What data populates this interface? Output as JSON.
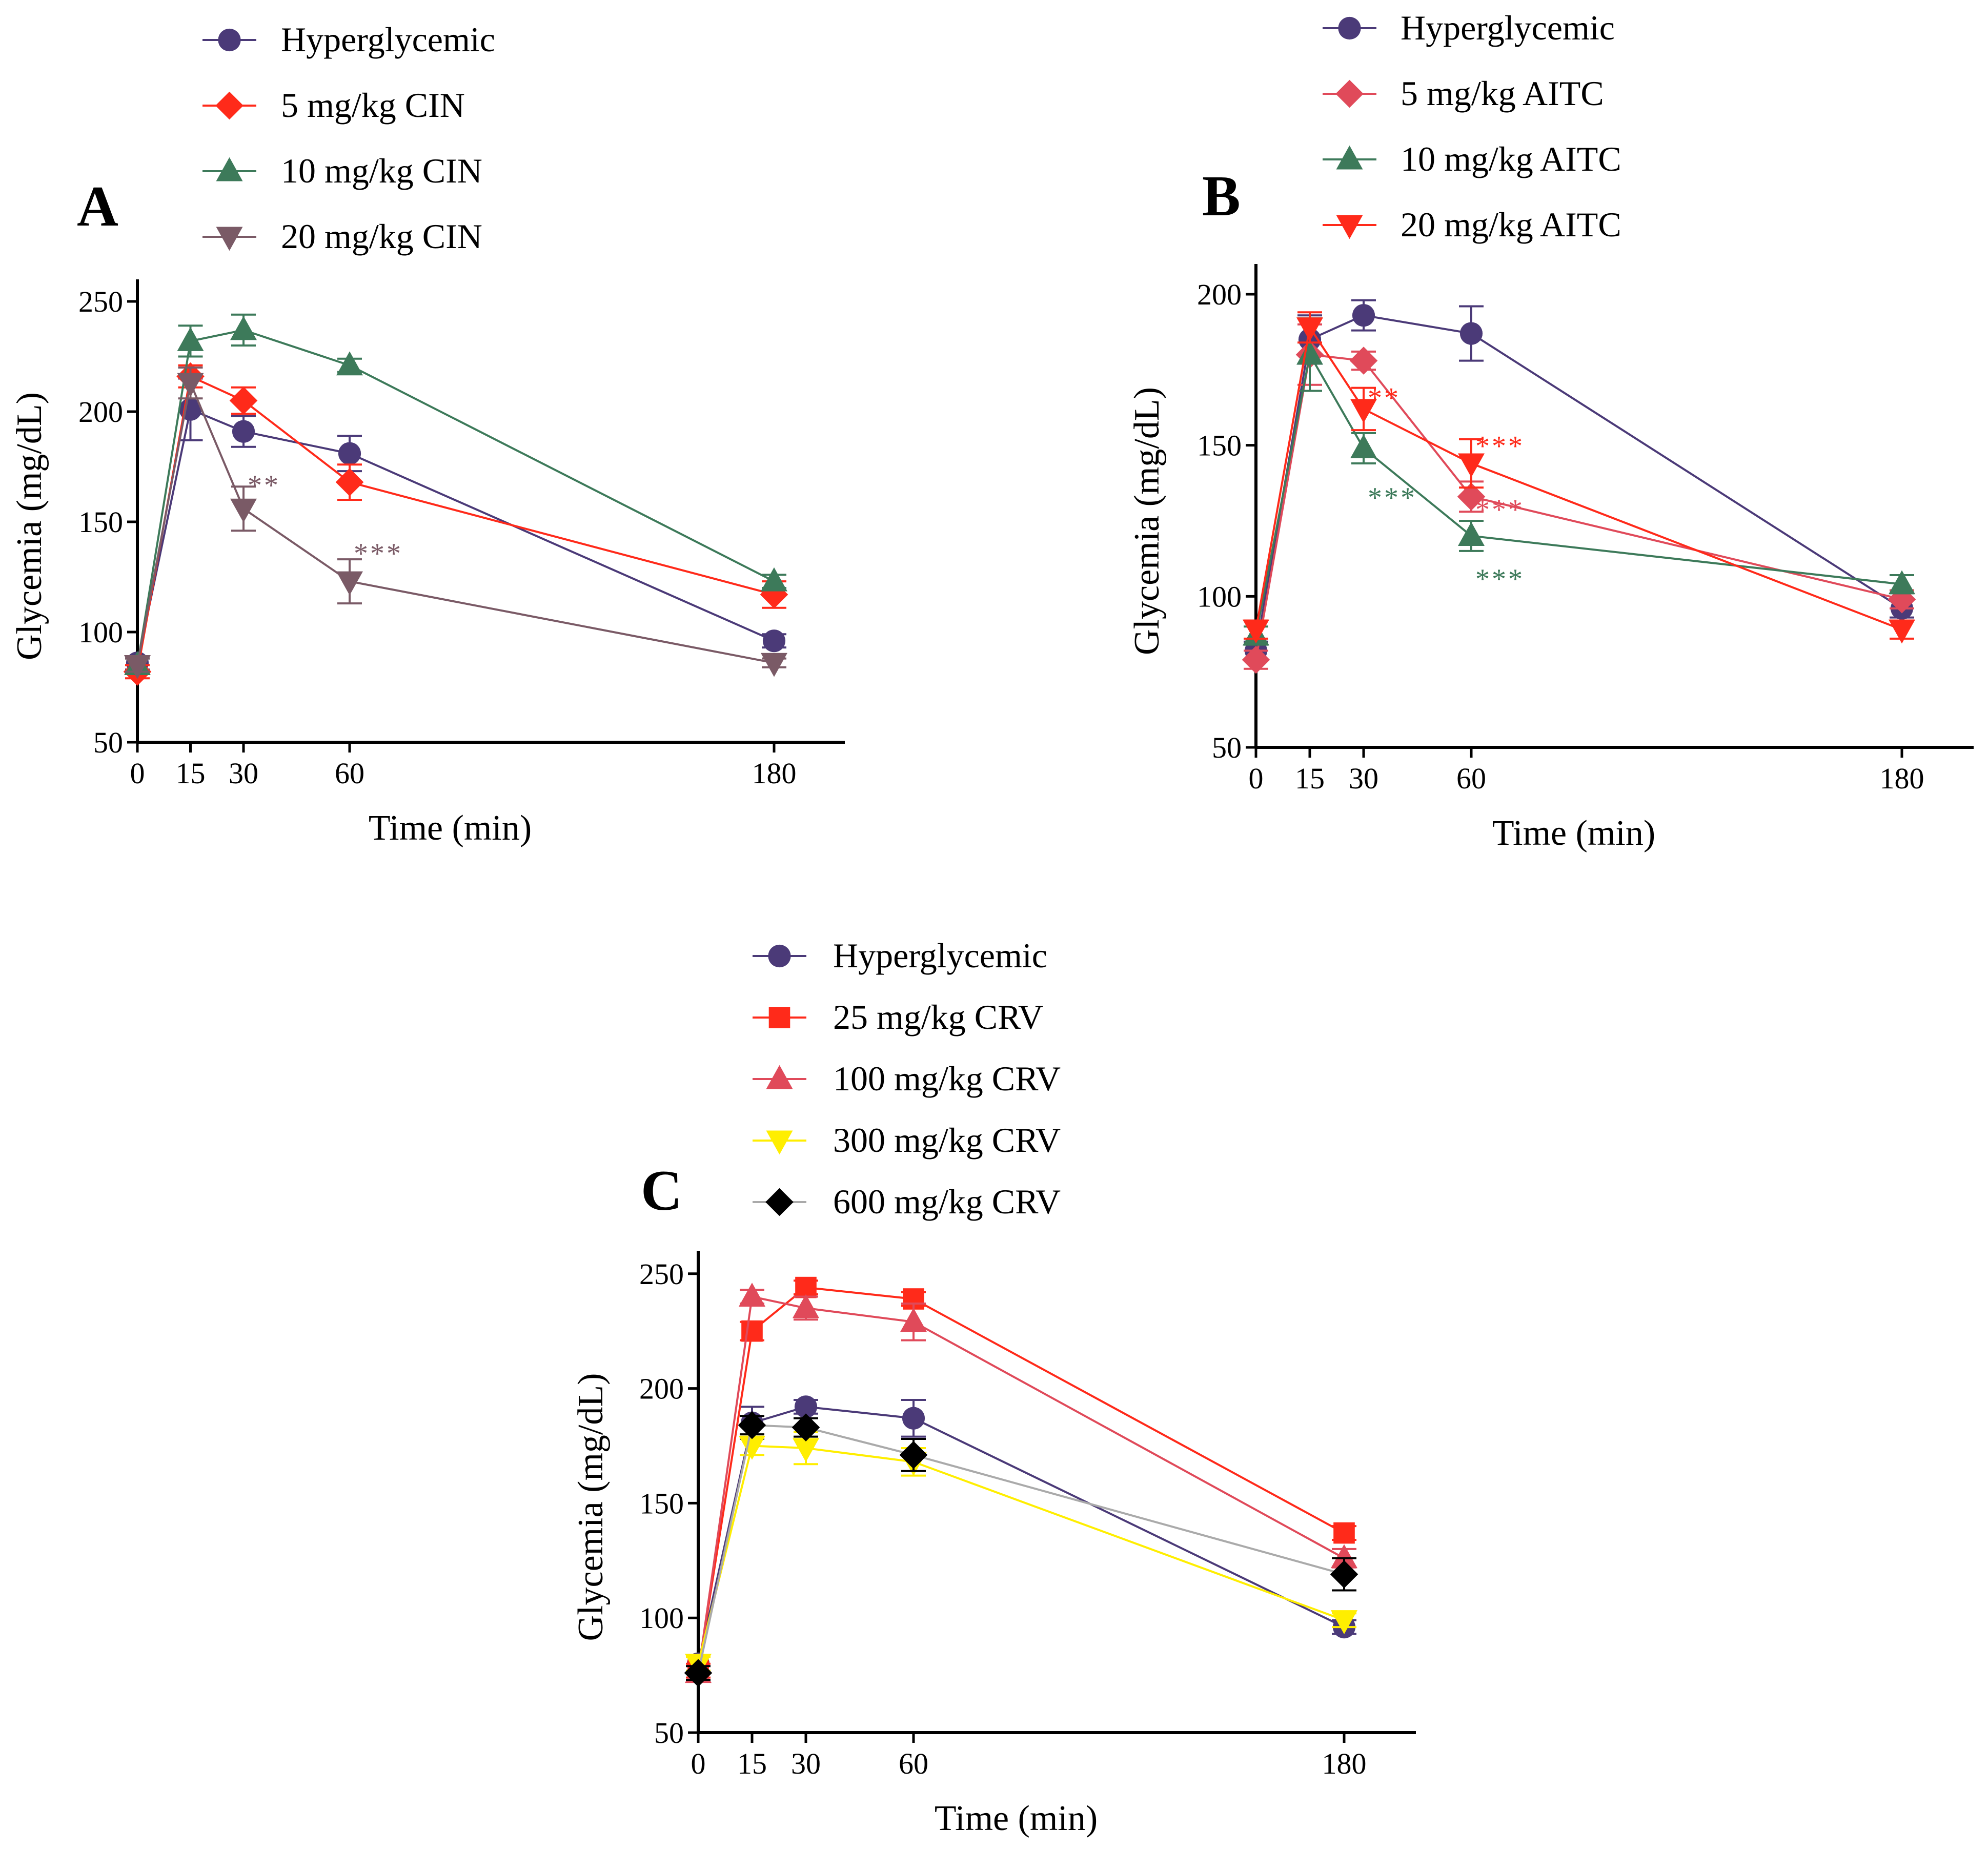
{
  "chart_data": [
    {
      "panel": "A",
      "type": "line",
      "title": "A",
      "xlabel": "Time (min)",
      "ylabel": "Glycemia (mg/dL)",
      "xticks": [
        0,
        15,
        30,
        60,
        180
      ],
      "xtick_labels": [
        "0",
        "15",
        "30",
        "60",
        "180"
      ],
      "yticks": [
        50,
        100,
        150,
        200,
        250
      ],
      "ytick_labels": [
        "50",
        "100",
        "150",
        "200",
        "250"
      ],
      "xlim": [
        0,
        200
      ],
      "ylim": [
        50,
        260
      ],
      "legend_position": "top",
      "series": [
        {
          "name": "Hyperglycemic",
          "color": "#4b3a78",
          "marker": "circle",
          "x": [
            0,
            15,
            30,
            60,
            180
          ],
          "values": [
            86,
            201,
            191,
            181,
            96
          ],
          "errors": [
            3,
            14,
            7,
            8,
            3
          ]
        },
        {
          "name": "5 mg/kg CIN",
          "color": "#ff2a1a",
          "marker": "diamond",
          "x": [
            0,
            15,
            30,
            60,
            180
          ],
          "values": [
            82,
            216,
            205,
            168,
            117
          ],
          "errors": [
            3,
            5,
            6,
            8,
            6
          ]
        },
        {
          "name": "10 mg/kg CIN",
          "color": "#3d7a5a",
          "marker": "triangle-up",
          "x": [
            0,
            15,
            30,
            60,
            180
          ],
          "values": [
            85,
            232,
            237,
            221,
            123
          ],
          "errors": [
            3,
            7,
            7,
            3,
            3
          ]
        },
        {
          "name": "20 mg/kg CIN",
          "color": "#7a5a66",
          "marker": "triangle-down",
          "x": [
            0,
            15,
            30,
            60,
            180
          ],
          "values": [
            85,
            213,
            156,
            123,
            86
          ],
          "errors": [
            3,
            7,
            10,
            10,
            2
          ]
        }
      ],
      "annotations": [
        {
          "text": "**",
          "x": 30,
          "y": 167,
          "series": "20 mg/kg CIN"
        },
        {
          "text": "***",
          "x": 60,
          "y": 136,
          "series": "20 mg/kg CIN"
        }
      ]
    },
    {
      "panel": "B",
      "type": "line",
      "title": "B",
      "xlabel": "Time (min)",
      "ylabel": "Glycemia (mg/dL)",
      "xticks": [
        0,
        15,
        30,
        60,
        180
      ],
      "xtick_labels": [
        "0",
        "15",
        "30",
        "60",
        "180"
      ],
      "yticks": [
        50,
        100,
        150,
        200
      ],
      "ytick_labels": [
        "50",
        "100",
        "150",
        "200"
      ],
      "xlim": [
        0,
        200
      ],
      "ylim": [
        50,
        210
      ],
      "legend_position": "top",
      "series": [
        {
          "name": "Hyperglycemic",
          "color": "#4b3a78",
          "marker": "circle",
          "x": [
            0,
            15,
            30,
            60,
            180
          ],
          "values": [
            82,
            185,
            193,
            187,
            96
          ],
          "errors": [
            3,
            8,
            5,
            9,
            3
          ]
        },
        {
          "name": "5 mg/kg AITC",
          "color": "#e04a5a",
          "marker": "diamond",
          "x": [
            0,
            15,
            30,
            60,
            180
          ],
          "values": [
            79,
            180,
            178,
            133,
            99
          ],
          "errors": [
            3,
            10,
            3,
            5,
            3
          ]
        },
        {
          "name": "10 mg/kg AITC",
          "color": "#3d7a5a",
          "marker": "triangle-up",
          "x": [
            0,
            15,
            30,
            60,
            180
          ],
          "values": [
            87,
            180,
            149,
            120,
            104
          ],
          "errors": [
            3,
            12,
            5,
            5,
            3
          ]
        },
        {
          "name": "20 mg/kg AITC",
          "color": "#ff2a1a",
          "marker": "triangle-down",
          "x": [
            0,
            15,
            30,
            60,
            180
          ],
          "values": [
            89,
            189,
            162,
            144,
            89
          ],
          "errors": [
            3,
            5,
            7,
            8,
            3
          ]
        }
      ],
      "annotations": [
        {
          "text": "**",
          "x": 30,
          "y": 166,
          "series": "20 mg/kg AITC"
        },
        {
          "text": "***",
          "x": 30,
          "y": 133,
          "series": "10 mg/kg AITC"
        },
        {
          "text": "***",
          "x": 60,
          "y": 150,
          "series": "20 mg/kg AITC"
        },
        {
          "text": "***",
          "x": 60,
          "y": 129,
          "series": "5 mg/kg AITC"
        },
        {
          "text": "***",
          "x": 60,
          "y": 106,
          "series": "10 mg/kg AITC"
        }
      ]
    },
    {
      "panel": "C",
      "type": "line",
      "title": "C",
      "xlabel": "Time (min)",
      "ylabel": "Glycemia (mg/dL)",
      "xticks": [
        0,
        15,
        30,
        60,
        180
      ],
      "xtick_labels": [
        "0",
        "15",
        "30",
        "60",
        "180"
      ],
      "yticks": [
        50,
        100,
        150,
        200,
        250
      ],
      "ytick_labels": [
        "50",
        "100",
        "150",
        "200",
        "250"
      ],
      "xlim": [
        0,
        200
      ],
      "ylim": [
        50,
        260
      ],
      "legend_position": "top",
      "series": [
        {
          "name": "Hyperglycemic",
          "color": "#4b3a78",
          "marker": "circle",
          "x": [
            0,
            15,
            30,
            60,
            180
          ],
          "values": [
            80,
            185,
            192,
            187,
            96
          ],
          "errors": [
            3,
            7,
            3,
            8,
            3
          ]
        },
        {
          "name": "25 mg/kg CRV",
          "color": "#ff2a1a",
          "marker": "square",
          "x": [
            0,
            15,
            30,
            60,
            180
          ],
          "values": [
            77,
            225,
            244,
            239,
            137
          ],
          "errors": [
            3,
            4,
            3,
            3,
            3
          ]
        },
        {
          "name": "100 mg/kg CRV",
          "color": "#e04a5a",
          "marker": "triangle-up",
          "x": [
            0,
            15,
            30,
            60,
            180
          ],
          "values": [
            76,
            240,
            235,
            229,
            126
          ],
          "errors": [
            3,
            3,
            5,
            8,
            4
          ]
        },
        {
          "name": "300 mg/kg CRV",
          "color": "#ffee00",
          "marker": "triangle-down",
          "x": [
            0,
            15,
            30,
            60,
            180
          ],
          "values": [
            80,
            175,
            174,
            168,
            99
          ],
          "errors": [
            3,
            4,
            7,
            6,
            3
          ]
        },
        {
          "name": "600 mg/kg CRV",
          "color": "#000000",
          "line_color": "#aaaaaa",
          "marker": "diamond",
          "x": [
            0,
            15,
            30,
            60,
            180
          ],
          "values": [
            76,
            184,
            183,
            171,
            119
          ],
          "errors": [
            3,
            4,
            4,
            7,
            7
          ]
        }
      ],
      "annotations": []
    }
  ]
}
